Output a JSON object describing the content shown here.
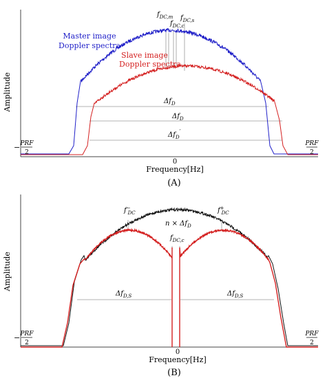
{
  "panel_a": {
    "caption": "(A)",
    "ylabel": "Amplitude",
    "xlabel": "Frequency[Hz]",
    "x_zero": "0",
    "prf_left": "−",
    "prf_num": "PRF",
    "prf_den": "2",
    "master_label_1": "Master image",
    "master_label_2": "Doppler spectra",
    "slave_label_1": "Slave image",
    "slave_label_2": "Doppler spectra",
    "fdc_m": "f",
    "fdc_m_sub": "DC,m",
    "fdc_c": "f",
    "fdc_c_sub": "DC,c",
    "fdc_s": "f",
    "fdc_s_sub": "DC,s",
    "delta_fd": "Δf",
    "delta_fd_sub": "D",
    "delta_fd_prime": "Δf",
    "delta_fd_prime_sub": "D",
    "delta_fd_prime_mark": "′"
  },
  "panel_b": {
    "caption": "(B)",
    "ylabel": "Amplitude",
    "xlabel": "Frequency[Hz]",
    "x_zero": "0",
    "prf_left": "−",
    "prf_num": "PRF",
    "prf_den": "2",
    "fdc_minus": "f",
    "fdc_minus_sub": "DC",
    "fdc_minus_sup": "−",
    "fdc_plus": "f",
    "fdc_plus_sub": "DC",
    "fdc_plus_sup": "+",
    "fdc_c": "f",
    "fdc_c_sub": "DC,c",
    "n_times": "n × Δf",
    "n_times_sub": "D",
    "delta_fds_left": "Δf",
    "delta_fds_left_sub": "D,S",
    "delta_fds_right": "Δf",
    "delta_fds_right_sub": "D,S"
  },
  "colors": {
    "master": "#1f1fc8",
    "slave": "#d42020",
    "black_spectrum": "#111111",
    "axis": "#444444",
    "guide": "#9a9a9a"
  }
}
